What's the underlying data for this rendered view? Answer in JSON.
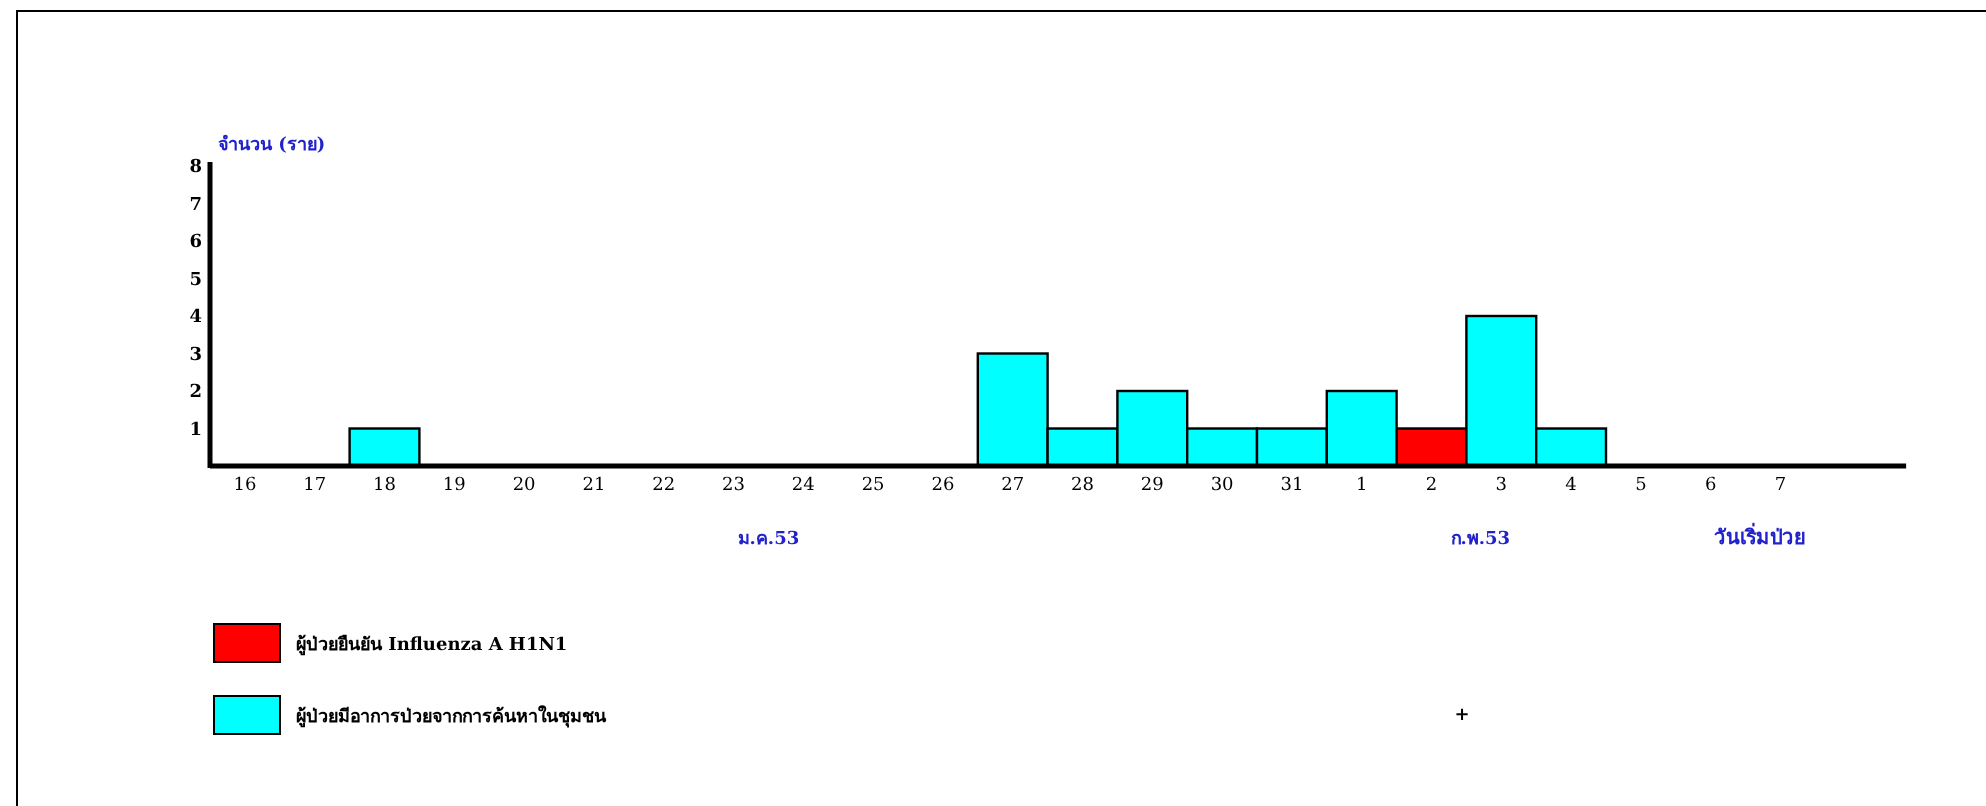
{
  "chart_data": {
    "type": "bar",
    "ylabel": "จำนวน (ราย)",
    "xlabel": "วันเริ่มป่วย",
    "categories": [
      "16",
      "17",
      "18",
      "19",
      "20",
      "21",
      "22",
      "23",
      "24",
      "25",
      "26",
      "27",
      "28",
      "29",
      "30",
      "31",
      "1",
      "2",
      "3",
      "4",
      "5",
      "6",
      "7"
    ],
    "series": [
      {
        "name": "ผู้ป่วยยืนยัน Influenza A H1N1",
        "color": "#ff0000",
        "values": [
          0,
          0,
          0,
          0,
          0,
          0,
          0,
          0,
          0,
          0,
          0,
          0,
          0,
          0,
          0,
          0,
          0,
          1,
          0,
          0,
          0,
          0,
          0
        ]
      },
      {
        "name": "ผู้ป่วยมีอาการป่วยจากการค้นหาในชุมชน",
        "color": "#00ffff",
        "values": [
          0,
          0,
          1,
          0,
          0,
          0,
          0,
          0,
          0,
          0,
          0,
          3,
          1,
          2,
          1,
          1,
          2,
          0,
          4,
          1,
          0,
          0,
          0
        ]
      }
    ],
    "ylim": [
      0,
      8
    ],
    "yticks": [
      1,
      2,
      3,
      4,
      5,
      6,
      7,
      8
    ],
    "grid": false,
    "legend": "bottom left",
    "annotations": [
      "ม.ค.53",
      "ก.พ.53",
      "+"
    ]
  }
}
